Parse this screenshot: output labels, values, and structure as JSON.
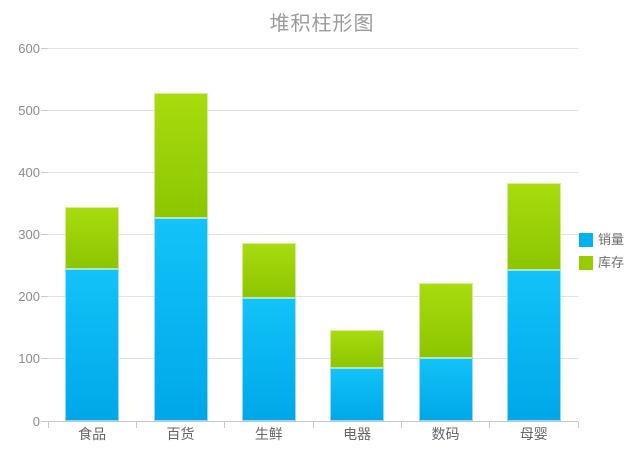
{
  "chart_data": {
    "type": "bar",
    "variant": "stacked-column",
    "title": "堆积柱形图",
    "categories": [
      "食品",
      "百货",
      "生鲜",
      "电器",
      "数码",
      "母婴"
    ],
    "series": [
      {
        "name": "销量",
        "color": "#00b2ef",
        "color_top": "#12c3f8",
        "color_bottom": "#00a7e8",
        "values": [
          245,
          327,
          198,
          86,
          102,
          243
        ]
      },
      {
        "name": "库存",
        "color": "#97cd00",
        "color_top": "#a8dc0e",
        "color_bottom": "#8cc500",
        "values": [
          100,
          200,
          88,
          60,
          120,
          140
        ]
      }
    ],
    "stack_totals": [
      345,
      527,
      286,
      146,
      222,
      383
    ],
    "xlabel": "",
    "ylabel": "",
    "ylim": [
      0,
      600
    ],
    "y_ticks": [
      0,
      100,
      200,
      300,
      400,
      500,
      600
    ],
    "grid": true,
    "legend_position": "right",
    "colors": {
      "title_text": "#9b9b9b",
      "axis_text": "#666666",
      "gridline": "#e3e3e3",
      "axis_line": "#c3c7cb"
    }
  }
}
